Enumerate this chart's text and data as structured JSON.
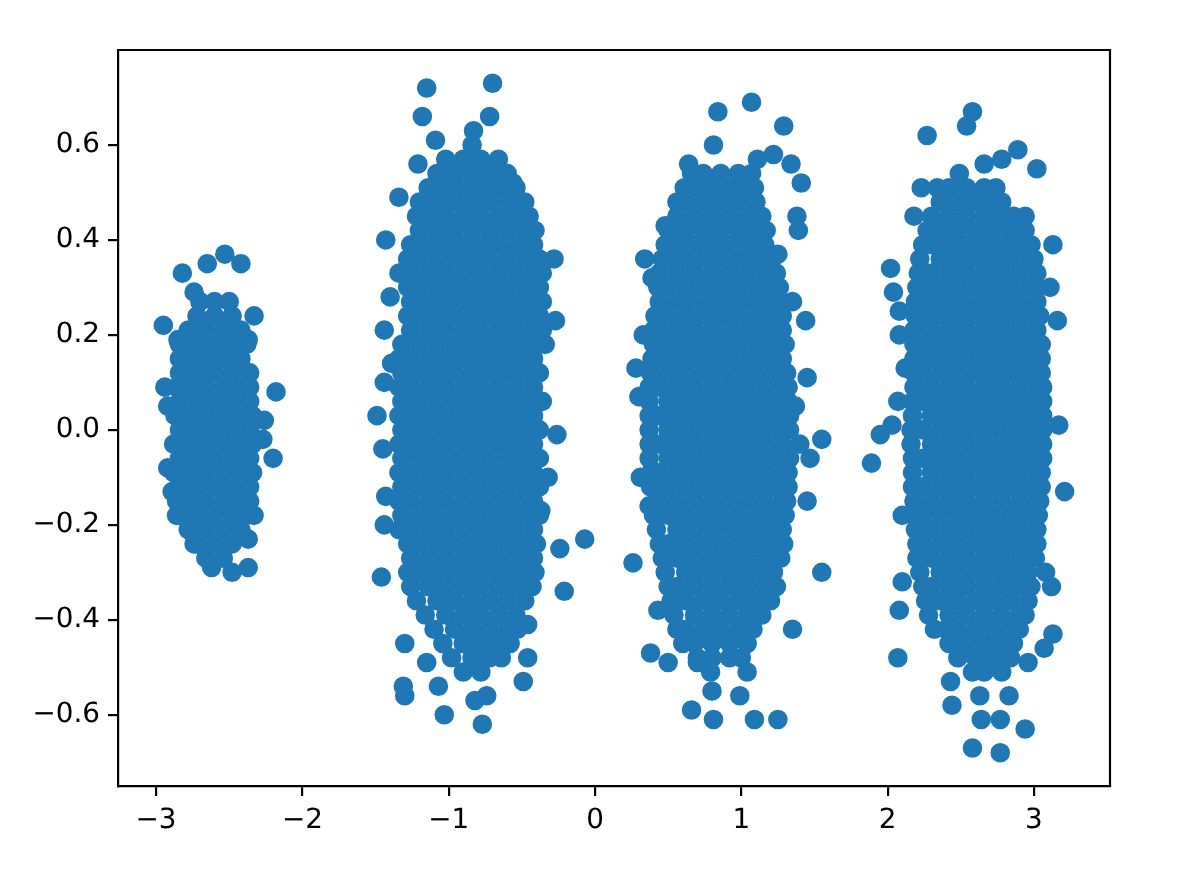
{
  "chart_data": {
    "type": "scatter",
    "marker": "circle",
    "xlim": [
      -3.26,
      3.52
    ],
    "ylim": [
      -0.75,
      0.8
    ],
    "xticks": [
      {
        "value": -3,
        "label": "−3"
      },
      {
        "value": -2,
        "label": "−2"
      },
      {
        "value": -1,
        "label": "−1"
      },
      0,
      1,
      2,
      3
    ],
    "yticks": [
      {
        "value": -0.6,
        "label": "−0.6"
      },
      {
        "value": -0.4,
        "label": "−0.4"
      },
      {
        "value": -0.2,
        "label": "−0.2"
      },
      {
        "value": 0,
        "label": "0.0"
      },
      0.2,
      0.4,
      0.6
    ],
    "series": [
      {
        "color": "#1f77b4",
        "x": [
          -2.82,
          -2.65,
          -2.53,
          -2.42,
          -2.74,
          -2.95,
          -2.33,
          -2.94,
          -2.18,
          -2.2,
          -2.92,
          -2.89,
          -2.86,
          -2.74,
          -2.62,
          -2.48,
          -2.37,
          -2.37,
          -2.33,
          -2.26,
          -2.27,
          -2.37,
          -2.85,
          -2.92,
          -2.7,
          -2.6,
          -2.5,
          -2.72,
          -2.6,
          -2.48,
          -2.78,
          -2.66,
          -2.54,
          -2.42,
          -2.84,
          -2.72,
          -2.6,
          -2.48,
          -2.38,
          -2.84,
          -2.78,
          -2.66,
          -2.54,
          -2.42,
          -2.84,
          -2.72,
          -2.6,
          -2.48,
          -2.36,
          -2.86,
          -2.78,
          -2.66,
          -2.54,
          -2.42,
          -2.36,
          -2.84,
          -2.72,
          -2.6,
          -2.48,
          -2.36,
          -2.87,
          -2.78,
          -2.66,
          -2.54,
          -2.42,
          -2.34,
          -2.84,
          -2.72,
          -2.6,
          -2.48,
          -2.36,
          -2.88,
          -2.78,
          -2.66,
          -2.54,
          -2.42,
          -2.34,
          -2.84,
          -2.72,
          -2.6,
          -2.48,
          -2.36,
          -2.88,
          -2.78,
          -2.66,
          -2.54,
          -2.42,
          -2.34,
          -2.84,
          -2.72,
          -2.6,
          -2.48,
          -2.36,
          -2.86,
          -2.78,
          -2.66,
          -2.54,
          -2.42,
          -2.36,
          -2.84,
          -2.72,
          -2.6,
          -2.48,
          -2.38,
          -2.78,
          -2.66,
          -2.54,
          -2.42,
          -2.72,
          -2.6,
          -2.48,
          -2.66,
          -2.54
        ],
        "values": [
          0.33,
          0.35,
          0.37,
          0.35,
          0.29,
          0.22,
          0.24,
          0.09,
          0.08,
          -0.06,
          -0.08,
          -0.13,
          -0.18,
          -0.24,
          -0.29,
          -0.3,
          -0.29,
          -0.23,
          -0.18,
          0.02,
          -0.02,
          0.19,
          0.19,
          0.05,
          0.27,
          0.27,
          0.27,
          0.24,
          0.24,
          0.24,
          0.21,
          0.21,
          0.21,
          0.21,
          0.18,
          0.18,
          0.18,
          0.18,
          0.18,
          0.15,
          0.15,
          0.15,
          0.15,
          0.15,
          0.12,
          0.12,
          0.12,
          0.12,
          0.12,
          0.09,
          0.09,
          0.09,
          0.09,
          0.09,
          0.09,
          0.06,
          0.06,
          0.06,
          0.06,
          0.06,
          0.03,
          0.03,
          0.03,
          0.03,
          0.03,
          0.03,
          0,
          0,
          0,
          0,
          0,
          -0.03,
          -0.03,
          -0.03,
          -0.03,
          -0.03,
          -0.03,
          -0.06,
          -0.06,
          -0.06,
          -0.06,
          -0.06,
          -0.09,
          -0.09,
          -0.09,
          -0.09,
          -0.09,
          -0.09,
          -0.12,
          -0.12,
          -0.12,
          -0.12,
          -0.12,
          -0.15,
          -0.15,
          -0.15,
          -0.15,
          -0.15,
          -0.15,
          -0.18,
          -0.18,
          -0.18,
          -0.18,
          -0.18,
          -0.21,
          -0.21,
          -0.21,
          -0.21,
          -0.24,
          -0.24,
          -0.24,
          -0.27,
          -0.27
        ]
      },
      {
        "color": "#1f77b4",
        "x": [
          -1.15,
          -0.7,
          -1.18,
          -0.72,
          -1.09,
          -0.83,
          -0.84,
          -1.21,
          -1.34,
          -0.56,
          -1.43,
          -0.28,
          -1.34,
          -1.4,
          -1.44,
          -0.27,
          -0.34,
          -1.39,
          -1.44,
          -1.49,
          -0.36,
          -0.26,
          -1.45,
          -0.32,
          -1.43,
          -1.44,
          -0.37,
          -0.07,
          -0.24,
          -1.46,
          -0.21,
          -1.3,
          -0.46,
          -0.46,
          -1.31,
          -1.3,
          -1.07,
          -0.49,
          -1.03,
          -0.82,
          -0.74,
          -0.77,
          -1.15,
          -1.02,
          -0.9,
          -0.78,
          -0.66,
          -1.08,
          -0.96,
          -0.84,
          -0.72,
          -0.6,
          -1.14,
          -1.02,
          -0.9,
          -0.78,
          -0.66,
          -0.54,
          -1.2,
          -1.08,
          -0.96,
          -0.84,
          -0.72,
          -0.6,
          -0.48,
          -1.22,
          -1.14,
          -1.02,
          -0.9,
          -0.78,
          -0.66,
          -0.54,
          -0.45,
          -1.2,
          -1.08,
          -0.96,
          -0.84,
          -0.72,
          -0.6,
          -0.48,
          -0.41,
          -1.26,
          -1.14,
          -1.02,
          -0.9,
          -0.78,
          -0.66,
          -0.54,
          -0.42,
          -1.28,
          -1.2,
          -1.08,
          -0.96,
          -0.84,
          -0.72,
          -0.6,
          -0.48,
          -0.38,
          -1.26,
          -1.14,
          -1.02,
          -0.9,
          -0.78,
          -0.66,
          -0.54,
          -0.42,
          -0.36,
          -1.28,
          -1.2,
          -1.08,
          -0.96,
          -0.84,
          -0.72,
          -0.6,
          -0.48,
          -0.38,
          -1.26,
          -1.14,
          -1.02,
          -0.9,
          -0.78,
          -0.66,
          -0.54,
          -0.42,
          -0.36,
          -1.28,
          -1.2,
          -1.08,
          -0.96,
          -0.84,
          -0.72,
          -0.6,
          -0.48,
          -0.38,
          -1.26,
          -1.14,
          -1.02,
          -0.9,
          -0.78,
          -0.66,
          -0.54,
          -0.42,
          -0.36,
          -1.32,
          -1.2,
          -1.08,
          -0.96,
          -0.84,
          -0.72,
          -0.6,
          -0.48,
          -0.38,
          -1.34,
          -1.26,
          -1.14,
          -1.02,
          -0.9,
          -0.78,
          -0.66,
          -0.54,
          -0.42,
          -1.32,
          -1.2,
          -1.08,
          -0.96,
          -0.84,
          -0.72,
          -0.6,
          -0.48,
          -0.38,
          -1.34,
          -1.26,
          -1.14,
          -1.02,
          -0.9,
          -0.78,
          -0.66,
          -0.54,
          -0.42,
          -1.32,
          -1.2,
          -1.08,
          -0.96,
          -0.84,
          -0.72,
          -0.6,
          -0.48,
          -1.34,
          -1.26,
          -1.14,
          -1.02,
          -0.9,
          -0.78,
          -0.66,
          -0.54,
          -0.42,
          -1.32,
          -1.2,
          -1.08,
          -0.96,
          -0.84,
          -0.72,
          -0.6,
          -0.48,
          -0.38,
          -1.34,
          -1.26,
          -1.14,
          -1.02,
          -0.9,
          -0.78,
          -0.66,
          -0.54,
          -0.42,
          -1.32,
          -1.2,
          -1.08,
          -0.96,
          -0.84,
          -0.72,
          -0.6,
          -0.48,
          -0.38,
          -1.34,
          -1.26,
          -1.14,
          -1.02,
          -0.9,
          -0.78,
          -0.66,
          -0.54,
          -0.42,
          -1.32,
          -1.2,
          -1.08,
          -0.96,
          -0.84,
          -0.72,
          -0.6,
          -0.48,
          -0.38,
          -1.34,
          -1.26,
          -1.14,
          -1.02,
          -0.9,
          -0.78,
          -0.66,
          -0.54,
          -0.42,
          -1.32,
          -1.2,
          -1.08,
          -0.96,
          -0.84,
          -0.72,
          -0.6,
          -0.48,
          -0.38,
          -1.34,
          -1.26,
          -1.14,
          -1.02,
          -0.9,
          -0.78,
          -0.66,
          -0.54,
          -0.42,
          -1.28,
          -1.2,
          -1.08,
          -0.96,
          -0.84,
          -0.72,
          -0.6,
          -0.48,
          -0.4,
          -1.26,
          -1.14,
          -1.02,
          -0.9,
          -0.78,
          -0.66,
          -0.54,
          -0.42,
          -1.28,
          -1.2,
          -1.08,
          -0.96,
          -0.84,
          -0.72,
          -0.6,
          -0.48,
          -0.41,
          -1.26,
          -1.14,
          -1.02,
          -0.9,
          -0.78,
          -0.66,
          -0.54,
          -0.43,
          -1.22,
          -1.08,
          -0.96,
          -0.84,
          -0.72,
          -0.6,
          -0.48,
          -1.16,
          -1.02,
          -0.9,
          -0.78,
          -0.66,
          -0.54,
          -1.1,
          -0.96,
          -0.84,
          -0.72,
          -0.6,
          -0.53,
          -1.04,
          -0.9,
          -0.78,
          -0.66,
          -0.58,
          -0.98,
          -0.84,
          -0.72,
          -0.64,
          -0.9,
          -0.78
        ],
        "values": [
          0.72,
          0.73,
          0.66,
          0.66,
          0.61,
          0.63,
          0.6,
          0.56,
          0.49,
          0.52,
          0.4,
          0.36,
          0.33,
          0.28,
          0.21,
          0.23,
          0.18,
          0.14,
          0.1,
          0.03,
          0.06,
          -0.01,
          -0.04,
          -0.1,
          -0.14,
          -0.2,
          -0.17,
          -0.23,
          -0.25,
          -0.31,
          -0.34,
          -0.45,
          -0.41,
          -0.48,
          -0.54,
          -0.56,
          -0.54,
          -0.53,
          -0.6,
          -0.57,
          -0.56,
          -0.62,
          -0.49,
          0.57,
          0.57,
          0.57,
          0.57,
          0.54,
          0.54,
          0.54,
          0.54,
          0.54,
          0.51,
          0.51,
          0.51,
          0.51,
          0.51,
          0.51,
          0.48,
          0.48,
          0.48,
          0.48,
          0.48,
          0.48,
          0.48,
          0.45,
          0.45,
          0.45,
          0.45,
          0.45,
          0.45,
          0.45,
          0.45,
          0.42,
          0.42,
          0.42,
          0.42,
          0.42,
          0.42,
          0.42,
          0.42,
          0.39,
          0.39,
          0.39,
          0.39,
          0.39,
          0.39,
          0.39,
          0.39,
          0.36,
          0.36,
          0.36,
          0.36,
          0.36,
          0.36,
          0.36,
          0.36,
          0.36,
          0.33,
          0.33,
          0.33,
          0.33,
          0.33,
          0.33,
          0.33,
          0.33,
          0.33,
          0.3,
          0.3,
          0.3,
          0.3,
          0.3,
          0.3,
          0.3,
          0.3,
          0.3,
          0.27,
          0.27,
          0.27,
          0.27,
          0.27,
          0.27,
          0.27,
          0.27,
          0.27,
          0.24,
          0.24,
          0.24,
          0.24,
          0.24,
          0.24,
          0.24,
          0.24,
          0.24,
          0.21,
          0.21,
          0.21,
          0.21,
          0.21,
          0.21,
          0.21,
          0.21,
          0.21,
          0.18,
          0.18,
          0.18,
          0.18,
          0.18,
          0.18,
          0.18,
          0.18,
          0.18,
          0.15,
          0.15,
          0.15,
          0.15,
          0.15,
          0.15,
          0.15,
          0.15,
          0.15,
          0.12,
          0.12,
          0.12,
          0.12,
          0.12,
          0.12,
          0.12,
          0.12,
          0.12,
          0.09,
          0.09,
          0.09,
          0.09,
          0.09,
          0.09,
          0.09,
          0.09,
          0.09,
          0.06,
          0.06,
          0.06,
          0.06,
          0.06,
          0.06,
          0.06,
          0.06,
          0.03,
          0.03,
          0.03,
          0.03,
          0.03,
          0.03,
          0.03,
          0.03,
          0.03,
          0,
          0,
          0,
          0,
          0,
          0,
          0,
          0,
          0,
          -0.03,
          -0.03,
          -0.03,
          -0.03,
          -0.03,
          -0.03,
          -0.03,
          -0.03,
          -0.03,
          -0.06,
          -0.06,
          -0.06,
          -0.06,
          -0.06,
          -0.06,
          -0.06,
          -0.06,
          -0.06,
          -0.09,
          -0.09,
          -0.09,
          -0.09,
          -0.09,
          -0.09,
          -0.09,
          -0.09,
          -0.09,
          -0.12,
          -0.12,
          -0.12,
          -0.12,
          -0.12,
          -0.12,
          -0.12,
          -0.12,
          -0.12,
          -0.15,
          -0.15,
          -0.15,
          -0.15,
          -0.15,
          -0.15,
          -0.15,
          -0.15,
          -0.15,
          -0.18,
          -0.18,
          -0.18,
          -0.18,
          -0.18,
          -0.18,
          -0.18,
          -0.18,
          -0.18,
          -0.21,
          -0.21,
          -0.21,
          -0.21,
          -0.21,
          -0.21,
          -0.21,
          -0.21,
          -0.21,
          -0.24,
          -0.24,
          -0.24,
          -0.24,
          -0.24,
          -0.24,
          -0.24,
          -0.24,
          -0.24,
          -0.27,
          -0.27,
          -0.27,
          -0.27,
          -0.27,
          -0.27,
          -0.27,
          -0.27,
          -0.3,
          -0.3,
          -0.3,
          -0.3,
          -0.3,
          -0.3,
          -0.3,
          -0.3,
          -0.3,
          -0.33,
          -0.33,
          -0.33,
          -0.33,
          -0.33,
          -0.33,
          -0.33,
          -0.33,
          -0.36,
          -0.36,
          -0.36,
          -0.36,
          -0.36,
          -0.36,
          -0.36,
          -0.39,
          -0.39,
          -0.39,
          -0.39,
          -0.39,
          -0.39,
          -0.42,
          -0.42,
          -0.42,
          -0.42,
          -0.42,
          -0.42,
          -0.45,
          -0.45,
          -0.45,
          -0.45,
          -0.45,
          -0.48,
          -0.48,
          -0.48,
          -0.48,
          -0.51,
          -0.51
        ]
      },
      {
        "color": "#1f77b4",
        "x": [
          1.07,
          0.84,
          1.29,
          0.81,
          1.22,
          1.34,
          0.64,
          1.41,
          1.11,
          1.38,
          1.39,
          1.25,
          0.34,
          0.48,
          0.39,
          1.35,
          1.44,
          0.33,
          0.28,
          0.3,
          1.45,
          1.37,
          1.55,
          1.47,
          1.4,
          0.31,
          1.45,
          0.37,
          0.26,
          1.55,
          1.35,
          0.43,
          0.38,
          0.5,
          0.7,
          0.8,
          0.66,
          0.81,
          0.99,
          1.09,
          1.25,
          1.04,
          0.79,
          0.66,
          0.74,
          0.86,
          0.98,
          1.07,
          0.61,
          0.68,
          0.8,
          0.92,
          1.04,
          1.09,
          0.56,
          0.62,
          0.74,
          0.86,
          0.98,
          1.1,
          0.56,
          0.68,
          0.8,
          0.92,
          1.04,
          1.14,
          0.5,
          0.62,
          0.74,
          0.86,
          0.98,
          1.1,
          1.17,
          0.48,
          0.56,
          0.68,
          0.8,
          0.92,
          1.04,
          1.16,
          0.46,
          0.5,
          0.62,
          0.74,
          0.86,
          0.98,
          1.1,
          1.21,
          0.44,
          0.56,
          0.68,
          0.8,
          0.92,
          1.04,
          1.16,
          1.24,
          0.43,
          0.5,
          0.62,
          0.74,
          0.86,
          0.98,
          1.1,
          1.22,
          1.26,
          0.44,
          0.56,
          0.68,
          0.8,
          0.92,
          1.04,
          1.16,
          1.27,
          0.41,
          0.5,
          0.62,
          0.74,
          0.86,
          0.98,
          1.1,
          1.22,
          1.28,
          0.4,
          0.44,
          0.56,
          0.68,
          0.8,
          0.92,
          1.04,
          1.16,
          1.28,
          0.4,
          0.5,
          0.62,
          0.74,
          0.86,
          0.98,
          1.1,
          1.22,
          1.3,
          0.39,
          0.44,
          0.56,
          0.68,
          0.8,
          0.92,
          1.04,
          1.16,
          1.28,
          0.38,
          0.5,
          0.62,
          0.74,
          0.86,
          0.98,
          1.1,
          1.22,
          1.31,
          0.37,
          0.44,
          0.56,
          0.68,
          0.8,
          0.92,
          1.04,
          1.16,
          1.28,
          1.32,
          0.37,
          0.5,
          0.62,
          0.74,
          0.86,
          0.98,
          1.1,
          1.22,
          1.32,
          0.37,
          0.44,
          0.56,
          0.68,
          0.8,
          0.92,
          1.04,
          1.16,
          1.28,
          1.33,
          0.37,
          0.5,
          0.62,
          0.74,
          0.86,
          0.98,
          1.1,
          1.22,
          1.33,
          0.37,
          0.44,
          0.56,
          0.68,
          0.8,
          0.92,
          1.04,
          1.16,
          1.28,
          0.37,
          0.5,
          0.62,
          0.74,
          0.86,
          0.98,
          1.1,
          1.22,
          1.33,
          0.38,
          0.44,
          0.56,
          0.68,
          0.8,
          0.92,
          1.04,
          1.16,
          1.28,
          1.32,
          0.38,
          0.5,
          0.62,
          0.74,
          0.86,
          0.98,
          1.1,
          1.22,
          1.32,
          0.44,
          0.56,
          0.68,
          0.8,
          0.92,
          1.04,
          1.16,
          1.28,
          1.31,
          0.4,
          0.5,
          0.62,
          0.74,
          0.86,
          0.98,
          1.1,
          1.22,
          1.3,
          0.42,
          0.56,
          0.68,
          0.8,
          0.92,
          1.04,
          1.16,
          1.28,
          0.44,
          0.5,
          0.62,
          0.74,
          0.86,
          0.98,
          1.1,
          1.22,
          1.29,
          0.46,
          0.56,
          0.68,
          0.8,
          0.92,
          1.04,
          1.16,
          1.27,
          0.48,
          0.62,
          0.74,
          0.86,
          0.98,
          1.1,
          1.22,
          0.5,
          0.56,
          0.68,
          0.8,
          0.92,
          1.04,
          1.16,
          1.24,
          0.52,
          0.62,
          0.74,
          0.86,
          0.98,
          1.1,
          1.2,
          0.54,
          0.68,
          0.8,
          0.92,
          1.04,
          1.14,
          0.56,
          0.62,
          0.74,
          0.86,
          0.98,
          1.08,
          0.6,
          0.68,
          0.8,
          0.92,
          1.04,
          0.7,
          0.8,
          0.92,
          1
        ],
        "values": [
          0.69,
          0.67,
          0.64,
          0.6,
          0.58,
          0.56,
          0.56,
          0.52,
          0.57,
          0.45,
          0.42,
          0.37,
          0.36,
          0.43,
          0.32,
          0.27,
          0.23,
          0.2,
          0.13,
          0.07,
          0.11,
          0.05,
          -0.02,
          -0.06,
          -0.03,
          -0.1,
          -0.15,
          -0.16,
          -0.28,
          -0.3,
          -0.42,
          -0.38,
          -0.47,
          -0.49,
          -0.49,
          -0.55,
          -0.59,
          -0.61,
          -0.56,
          -0.61,
          -0.61,
          -0.51,
          -0.51,
          0.54,
          0.54,
          0.54,
          0.54,
          0.54,
          0.51,
          0.51,
          0.51,
          0.51,
          0.51,
          0.51,
          0.48,
          0.48,
          0.48,
          0.48,
          0.48,
          0.48,
          0.45,
          0.45,
          0.45,
          0.45,
          0.45,
          0.45,
          0.42,
          0.42,
          0.42,
          0.42,
          0.42,
          0.42,
          0.42,
          0.39,
          0.39,
          0.39,
          0.39,
          0.39,
          0.39,
          0.39,
          0.36,
          0.36,
          0.36,
          0.36,
          0.36,
          0.36,
          0.36,
          0.36,
          0.33,
          0.33,
          0.33,
          0.33,
          0.33,
          0.33,
          0.33,
          0.33,
          0.3,
          0.3,
          0.3,
          0.3,
          0.3,
          0.3,
          0.3,
          0.3,
          0.3,
          0.27,
          0.27,
          0.27,
          0.27,
          0.27,
          0.27,
          0.27,
          0.27,
          0.24,
          0.24,
          0.24,
          0.24,
          0.24,
          0.24,
          0.24,
          0.24,
          0.24,
          0.21,
          0.21,
          0.21,
          0.21,
          0.21,
          0.21,
          0.21,
          0.21,
          0.21,
          0.18,
          0.18,
          0.18,
          0.18,
          0.18,
          0.18,
          0.18,
          0.18,
          0.18,
          0.15,
          0.15,
          0.15,
          0.15,
          0.15,
          0.15,
          0.15,
          0.15,
          0.15,
          0.12,
          0.12,
          0.12,
          0.12,
          0.12,
          0.12,
          0.12,
          0.12,
          0.12,
          0.09,
          0.09,
          0.09,
          0.09,
          0.09,
          0.09,
          0.09,
          0.09,
          0.09,
          0.09,
          0.06,
          0.06,
          0.06,
          0.06,
          0.06,
          0.06,
          0.06,
          0.06,
          0.06,
          0.03,
          0.03,
          0.03,
          0.03,
          0.03,
          0.03,
          0.03,
          0.03,
          0.03,
          0.03,
          0,
          0,
          0,
          0,
          0,
          0,
          0,
          0,
          0,
          -0.03,
          -0.03,
          -0.03,
          -0.03,
          -0.03,
          -0.03,
          -0.03,
          -0.03,
          -0.03,
          -0.06,
          -0.06,
          -0.06,
          -0.06,
          -0.06,
          -0.06,
          -0.06,
          -0.06,
          -0.06,
          -0.09,
          -0.09,
          -0.09,
          -0.09,
          -0.09,
          -0.09,
          -0.09,
          -0.09,
          -0.09,
          -0.09,
          -0.12,
          -0.12,
          -0.12,
          -0.12,
          -0.12,
          -0.12,
          -0.12,
          -0.12,
          -0.12,
          -0.15,
          -0.15,
          -0.15,
          -0.15,
          -0.15,
          -0.15,
          -0.15,
          -0.15,
          -0.15,
          -0.18,
          -0.18,
          -0.18,
          -0.18,
          -0.18,
          -0.18,
          -0.18,
          -0.18,
          -0.18,
          -0.21,
          -0.21,
          -0.21,
          -0.21,
          -0.21,
          -0.21,
          -0.21,
          -0.21,
          -0.24,
          -0.24,
          -0.24,
          -0.24,
          -0.24,
          -0.24,
          -0.24,
          -0.24,
          -0.24,
          -0.27,
          -0.27,
          -0.27,
          -0.27,
          -0.27,
          -0.27,
          -0.27,
          -0.27,
          -0.3,
          -0.3,
          -0.3,
          -0.3,
          -0.3,
          -0.3,
          -0.3,
          -0.33,
          -0.33,
          -0.33,
          -0.33,
          -0.33,
          -0.33,
          -0.33,
          -0.33,
          -0.36,
          -0.36,
          -0.36,
          -0.36,
          -0.36,
          -0.36,
          -0.36,
          -0.39,
          -0.39,
          -0.39,
          -0.39,
          -0.39,
          -0.39,
          -0.42,
          -0.42,
          -0.42,
          -0.42,
          -0.42,
          -0.42,
          -0.45,
          -0.45,
          -0.45,
          -0.45,
          -0.45,
          -0.48,
          -0.48,
          -0.48,
          -0.48
        ]
      },
      {
        "color": "#1f77b4",
        "x": [
          2.58,
          2.54,
          2.27,
          2.89,
          2.78,
          3.02,
          2.66,
          2.23,
          2.49,
          2.18,
          2.94,
          3.13,
          2.02,
          3.11,
          2.04,
          2.08,
          3.16,
          2.08,
          2.12,
          2.07,
          2.03,
          1.95,
          1.89,
          3.17,
          3.21,
          2.1,
          3.08,
          3.12,
          2.1,
          2.08,
          3.13,
          3.07,
          2.07,
          2.96,
          2.43,
          2.44,
          2.63,
          2.83,
          2.64,
          2.77,
          2.94,
          2.58,
          2.77,
          2.34,
          2.42,
          2.54,
          2.66,
          2.74,
          2.36,
          2.48,
          2.6,
          2.72,
          2.78,
          2.3,
          2.42,
          2.54,
          2.66,
          2.78,
          2.86,
          2.27,
          2.36,
          2.48,
          2.6,
          2.72,
          2.84,
          2.94,
          2.24,
          2.3,
          2.42,
          2.54,
          2.66,
          2.78,
          2.9,
          2.98,
          2.22,
          2.36,
          2.48,
          2.6,
          2.72,
          2.84,
          2.96,
          3,
          2.21,
          2.3,
          2.42,
          2.54,
          2.66,
          2.78,
          2.9,
          3.02,
          2.2,
          2.24,
          2.36,
          2.48,
          2.6,
          2.72,
          2.84,
          2.96,
          3.03,
          2.19,
          2.3,
          2.42,
          2.54,
          2.66,
          2.78,
          2.9,
          3.02,
          2.19,
          2.24,
          2.36,
          2.48,
          2.6,
          2.72,
          2.84,
          2.96,
          3.04,
          2.18,
          2.3,
          2.42,
          2.54,
          2.66,
          2.78,
          2.9,
          3.02,
          2.18,
          2.24,
          2.36,
          2.48,
          2.6,
          2.72,
          2.84,
          2.96,
          3.05,
          2.18,
          2.3,
          2.42,
          2.54,
          2.66,
          2.78,
          2.9,
          3.02,
          3.05,
          2.18,
          2.24,
          2.36,
          2.48,
          2.6,
          2.72,
          2.84,
          2.96,
          3.05,
          2.18,
          2.3,
          2.42,
          2.54,
          2.66,
          2.78,
          2.9,
          3.02,
          3.06,
          2.17,
          2.24,
          2.36,
          2.48,
          2.6,
          2.72,
          2.84,
          2.96,
          3.06,
          2.17,
          2.3,
          2.42,
          2.54,
          2.66,
          2.78,
          2.9,
          3.02,
          3.06,
          2.16,
          2.24,
          2.36,
          2.48,
          2.6,
          2.72,
          2.84,
          2.96,
          3.06,
          2.16,
          2.3,
          2.42,
          2.54,
          2.66,
          2.78,
          2.9,
          3.02,
          3.06,
          2.17,
          2.24,
          2.36,
          2.48,
          2.6,
          2.72,
          2.84,
          2.96,
          3.06,
          2.17,
          2.3,
          2.42,
          2.54,
          2.66,
          2.78,
          2.9,
          3.02,
          3.05,
          2.17,
          2.24,
          2.36,
          2.48,
          2.6,
          2.72,
          2.84,
          2.96,
          3.05,
          2.18,
          2.3,
          2.42,
          2.54,
          2.66,
          2.78,
          2.9,
          3.02,
          3.04,
          2.18,
          2.24,
          2.36,
          2.48,
          2.6,
          2.72,
          2.84,
          2.96,
          3.03,
          2.19,
          2.3,
          2.42,
          2.54,
          2.66,
          2.78,
          2.9,
          3.02,
          2.2,
          2.24,
          2.36,
          2.48,
          2.6,
          2.72,
          2.84,
          2.96,
          3.02,
          2.2,
          2.3,
          2.42,
          2.54,
          2.66,
          2.78,
          2.9,
          3.01,
          2.22,
          2.36,
          2.48,
          2.6,
          2.72,
          2.84,
          2.96,
          2.24,
          2.3,
          2.42,
          2.54,
          2.66,
          2.78,
          2.9,
          2.98,
          2.26,
          2.36,
          2.48,
          2.6,
          2.72,
          2.84,
          2.96,
          2.28,
          2.42,
          2.54,
          2.66,
          2.78,
          2.9,
          2.94,
          2.32,
          2.4,
          2.48,
          2.6,
          2.72,
          2.84,
          2.9,
          2.42,
          2.54,
          2.66,
          2.78,
          2.86,
          2.48,
          2.6,
          2.72,
          2.84,
          2.58,
          2.66,
          2.78
        ],
        "values": [
          0.67,
          0.64,
          0.62,
          0.59,
          0.57,
          0.55,
          0.56,
          0.51,
          0.54,
          0.45,
          0.45,
          0.39,
          0.34,
          0.3,
          0.29,
          0.25,
          0.23,
          0.2,
          0.13,
          0.06,
          0.01,
          -0.01,
          -0.07,
          0.01,
          -0.13,
          -0.18,
          -0.3,
          -0.33,
          -0.32,
          -0.38,
          -0.43,
          -0.46,
          -0.48,
          -0.49,
          -0.53,
          -0.58,
          -0.56,
          -0.56,
          -0.61,
          -0.61,
          -0.63,
          -0.67,
          -0.68,
          0.51,
          0.51,
          0.51,
          0.51,
          0.51,
          0.48,
          0.48,
          0.48,
          0.48,
          0.48,
          0.45,
          0.45,
          0.45,
          0.45,
          0.45,
          0.45,
          0.42,
          0.42,
          0.42,
          0.42,
          0.42,
          0.42,
          0.42,
          0.39,
          0.39,
          0.39,
          0.39,
          0.39,
          0.39,
          0.39,
          0.39,
          0.36,
          0.36,
          0.36,
          0.36,
          0.36,
          0.36,
          0.36,
          0.36,
          0.33,
          0.33,
          0.33,
          0.33,
          0.33,
          0.33,
          0.33,
          0.33,
          0.3,
          0.3,
          0.3,
          0.3,
          0.3,
          0.3,
          0.3,
          0.3,
          0.3,
          0.27,
          0.27,
          0.27,
          0.27,
          0.27,
          0.27,
          0.27,
          0.27,
          0.24,
          0.24,
          0.24,
          0.24,
          0.24,
          0.24,
          0.24,
          0.24,
          0.24,
          0.21,
          0.21,
          0.21,
          0.21,
          0.21,
          0.21,
          0.21,
          0.21,
          0.18,
          0.18,
          0.18,
          0.18,
          0.18,
          0.18,
          0.18,
          0.18,
          0.18,
          0.15,
          0.15,
          0.15,
          0.15,
          0.15,
          0.15,
          0.15,
          0.15,
          0.15,
          0.12,
          0.12,
          0.12,
          0.12,
          0.12,
          0.12,
          0.12,
          0.12,
          0.12,
          0.09,
          0.09,
          0.09,
          0.09,
          0.09,
          0.09,
          0.09,
          0.09,
          0.09,
          0.06,
          0.06,
          0.06,
          0.06,
          0.06,
          0.06,
          0.06,
          0.06,
          0.06,
          0.03,
          0.03,
          0.03,
          0.03,
          0.03,
          0.03,
          0.03,
          0.03,
          0.03,
          0,
          0,
          0,
          0,
          0,
          0,
          0,
          0,
          0,
          -0.03,
          -0.03,
          -0.03,
          -0.03,
          -0.03,
          -0.03,
          -0.03,
          -0.03,
          -0.03,
          -0.06,
          -0.06,
          -0.06,
          -0.06,
          -0.06,
          -0.06,
          -0.06,
          -0.06,
          -0.06,
          -0.09,
          -0.09,
          -0.09,
          -0.09,
          -0.09,
          -0.09,
          -0.09,
          -0.09,
          -0.09,
          -0.12,
          -0.12,
          -0.12,
          -0.12,
          -0.12,
          -0.12,
          -0.12,
          -0.12,
          -0.12,
          -0.15,
          -0.15,
          -0.15,
          -0.15,
          -0.15,
          -0.15,
          -0.15,
          -0.15,
          -0.15,
          -0.18,
          -0.18,
          -0.18,
          -0.18,
          -0.18,
          -0.18,
          -0.18,
          -0.18,
          -0.18,
          -0.21,
          -0.21,
          -0.21,
          -0.21,
          -0.21,
          -0.21,
          -0.21,
          -0.21,
          -0.24,
          -0.24,
          -0.24,
          -0.24,
          -0.24,
          -0.24,
          -0.24,
          -0.24,
          -0.24,
          -0.27,
          -0.27,
          -0.27,
          -0.27,
          -0.27,
          -0.27,
          -0.27,
          -0.27,
          -0.3,
          -0.3,
          -0.3,
          -0.3,
          -0.3,
          -0.3,
          -0.3,
          -0.33,
          -0.33,
          -0.33,
          -0.33,
          -0.33,
          -0.33,
          -0.33,
          -0.33,
          -0.36,
          -0.36,
          -0.36,
          -0.36,
          -0.36,
          -0.36,
          -0.36,
          -0.39,
          -0.39,
          -0.39,
          -0.39,
          -0.39,
          -0.39,
          -0.39,
          -0.42,
          -0.42,
          -0.42,
          -0.42,
          -0.42,
          -0.42,
          -0.42,
          -0.45,
          -0.45,
          -0.45,
          -0.45,
          -0.45,
          -0.48,
          -0.48,
          -0.48,
          -0.48,
          -0.51,
          -0.51,
          -0.51
        ]
      }
    ]
  }
}
